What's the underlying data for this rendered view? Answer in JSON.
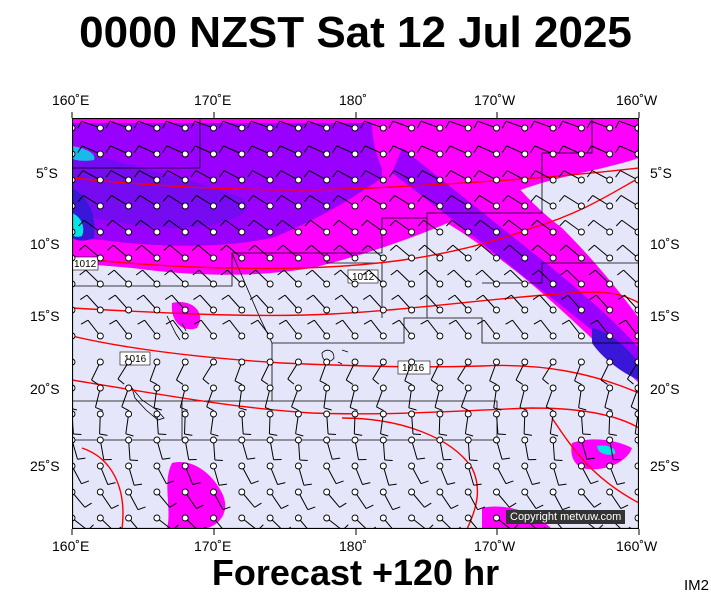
{
  "title": "0000 NZST Sat 12 Jul 2025",
  "footer": "Forecast +120 hr",
  "code": "IM2",
  "copyright": "Copyright metvuw.com",
  "lon_labels": [
    "160˚E",
    "170˚E",
    "180˚",
    "170˚W",
    "160˚W"
  ],
  "lat_labels": [
    "5˚S",
    "10˚S",
    "15˚S",
    "20˚S",
    "25˚S"
  ],
  "isobar_labels": [
    "1012",
    "1012",
    "1016",
    "1016"
  ],
  "colors": {
    "ocean": "#e6e6fa",
    "rain_light": "#ff00ff",
    "rain_mid": "#9a00ff",
    "rain_heavy": "#3a16d8",
    "rain_vheavy": "#00e6e6",
    "isobar": "#ff0000",
    "border": "#000000"
  }
}
